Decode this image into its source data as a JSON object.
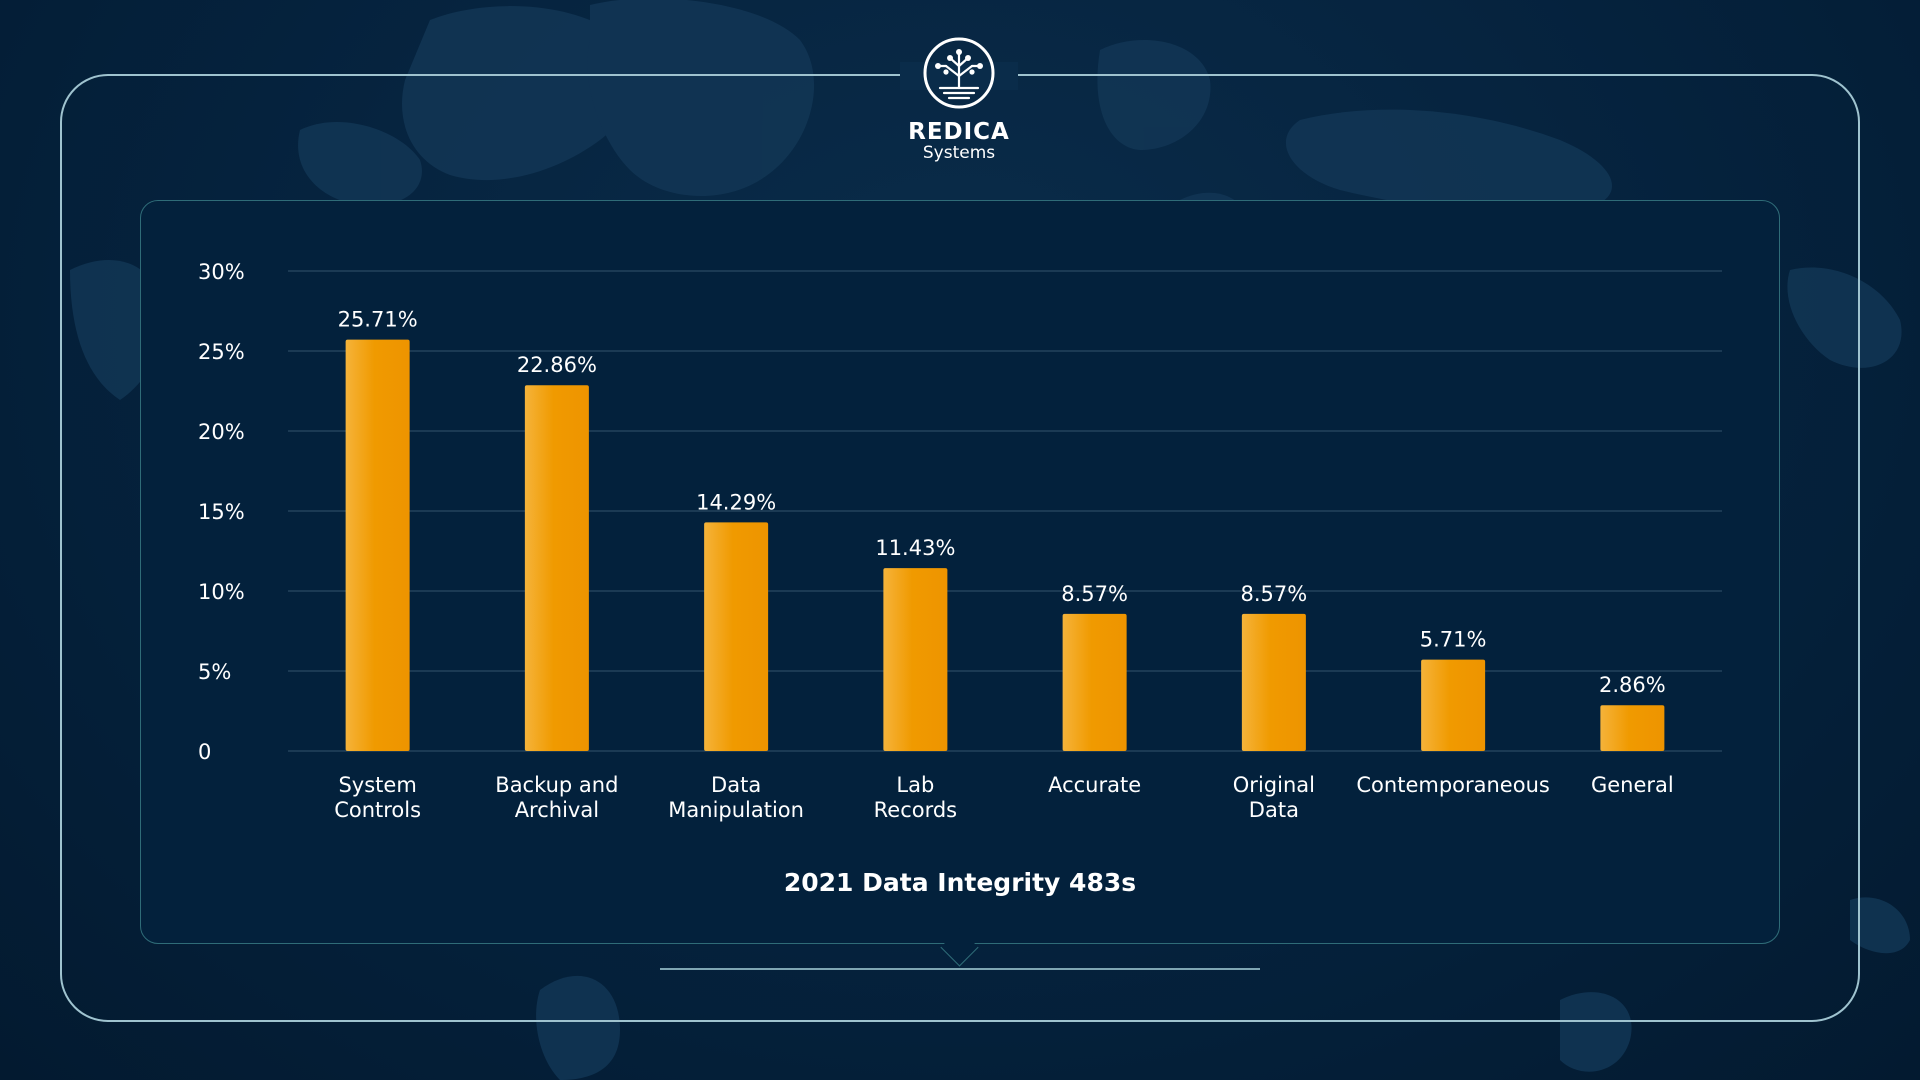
{
  "brand": {
    "name": "REDICA",
    "sub": "Systems"
  },
  "colors": {
    "background": "#04203a",
    "bar": "#f09a00",
    "bar_highlight": "#f5b33a",
    "grid": "#2a4a63",
    "text": "#ffffff"
  },
  "chart_data": {
    "type": "bar",
    "title": "2021 Data Integrity 483s",
    "xlabel": "",
    "ylabel": "",
    "ylim": [
      0,
      30
    ],
    "yticks": [
      0,
      5,
      10,
      15,
      20,
      25,
      30
    ],
    "ytick_labels": [
      "0",
      "5%",
      "10%",
      "15%",
      "20%",
      "25%",
      "30%"
    ],
    "grid": true,
    "legend": "none",
    "categories": [
      [
        "System",
        "Controls"
      ],
      [
        "Backup and",
        "Archival"
      ],
      [
        "Data",
        "Manipulation"
      ],
      [
        "Lab",
        "Records"
      ],
      [
        "Accurate"
      ],
      [
        "Original",
        "Data"
      ],
      [
        "Contemporaneous"
      ],
      [
        "General"
      ]
    ],
    "values": [
      25.71,
      22.86,
      14.29,
      11.43,
      8.57,
      8.57,
      5.71,
      2.86
    ],
    "value_labels": [
      "25.71%",
      "22.86%",
      "14.29%",
      "11.43%",
      "8.57%",
      "8.57%",
      "5.71%",
      "2.86%"
    ]
  }
}
